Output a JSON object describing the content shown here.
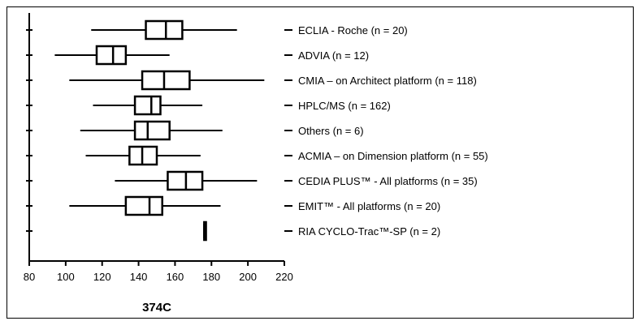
{
  "chart_data": {
    "type": "boxplot",
    "orientation": "horizontal",
    "xlabel": "374C",
    "xlim": [
      80,
      220
    ],
    "x_ticks": [
      80,
      100,
      120,
      140,
      160,
      180,
      200,
      220
    ],
    "series": [
      {
        "name": "ECLIA - Roche (n = 20)",
        "min": 114,
        "q1": 144,
        "median": 155,
        "q3": 164,
        "max": 194
      },
      {
        "name": "ADVIA (n = 12)",
        "min": 94,
        "q1": 117,
        "median": 126,
        "q3": 133,
        "max": 157
      },
      {
        "name": "CMIA – on Architect platform (n = 118)",
        "min": 102,
        "q1": 142,
        "median": 154,
        "q3": 168,
        "max": 209
      },
      {
        "name": "HPLC/MS (n = 162)",
        "min": 115,
        "q1": 138,
        "median": 147,
        "q3": 152,
        "max": 175
      },
      {
        "name": "Others (n = 6)",
        "min": 108,
        "q1": 138,
        "median": 145,
        "q3": 157,
        "max": 186
      },
      {
        "name": "ACMIA – on Dimension platform (n = 55)",
        "min": 111,
        "q1": 135,
        "median": 142,
        "q3": 150,
        "max": 174
      },
      {
        "name": "CEDIA PLUS™ - All platforms (n = 35)",
        "min": 127,
        "q1": 156,
        "median": 166,
        "q3": 175,
        "max": 205
      },
      {
        "name": "EMIT™ - All platforms (n = 20)",
        "min": 102,
        "q1": 133,
        "median": 146,
        "q3": 153,
        "max": 185
      },
      {
        "name": "RIA CYCLO-Trac™-SP (n = 2)",
        "min": 176,
        "q1": 176,
        "median": 176,
        "q3": 177,
        "max": 177
      }
    ],
    "legend_placement": "right",
    "grid": false
  }
}
